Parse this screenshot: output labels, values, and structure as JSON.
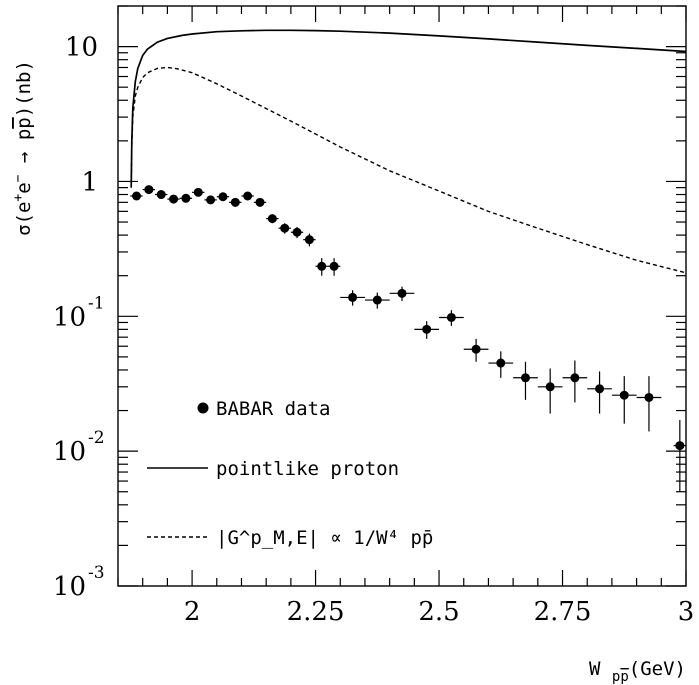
{
  "chart_data": {
    "type": "scatter",
    "title": "",
    "xlabel": "W pp̄ (GeV)",
    "ylabel": "σ(e⁺e⁻ → pp̄) (nb)",
    "xlim": [
      1.85,
      3.0
    ],
    "ylim": [
      0.001,
      20
    ],
    "yscale": "log",
    "grid": false,
    "legend_position": "bottom-left",
    "x_ticks": [
      {
        "value": 2.0,
        "label": "2"
      },
      {
        "value": 2.25,
        "label": "2.25"
      },
      {
        "value": 2.5,
        "label": "2.5"
      },
      {
        "value": 2.75,
        "label": "2.75"
      },
      {
        "value": 3.0,
        "label": "3"
      }
    ],
    "y_ticks": [
      {
        "value": 10,
        "base": "10",
        "exp": ""
      },
      {
        "value": 1,
        "base": "1",
        "exp": ""
      },
      {
        "value": 0.1,
        "base": "10",
        "exp": "-1"
      },
      {
        "value": 0.01,
        "base": "10",
        "exp": "-2"
      },
      {
        "value": 0.001,
        "base": "10",
        "exp": "-3"
      }
    ],
    "series": [
      {
        "name": "BABAR data",
        "style": "points",
        "points": [
          {
            "x": 1.8875,
            "y": 0.78,
            "xerr": 0.0125,
            "yerr": 0.05
          },
          {
            "x": 1.9125,
            "y": 0.87,
            "xerr": 0.0125,
            "yerr": 0.05
          },
          {
            "x": 1.9375,
            "y": 0.8,
            "xerr": 0.0125,
            "yerr": 0.05
          },
          {
            "x": 1.9625,
            "y": 0.74,
            "xerr": 0.0125,
            "yerr": 0.05
          },
          {
            "x": 1.9875,
            "y": 0.75,
            "xerr": 0.0125,
            "yerr": 0.05
          },
          {
            "x": 2.0125,
            "y": 0.83,
            "xerr": 0.0125,
            "yerr": 0.05
          },
          {
            "x": 2.0375,
            "y": 0.73,
            "xerr": 0.0125,
            "yerr": 0.05
          },
          {
            "x": 2.0625,
            "y": 0.77,
            "xerr": 0.0125,
            "yerr": 0.05
          },
          {
            "x": 2.0875,
            "y": 0.7,
            "xerr": 0.0125,
            "yerr": 0.05
          },
          {
            "x": 2.1125,
            "y": 0.78,
            "xerr": 0.0125,
            "yerr": 0.05
          },
          {
            "x": 2.1375,
            "y": 0.7,
            "xerr": 0.0125,
            "yerr": 0.05
          },
          {
            "x": 2.1625,
            "y": 0.53,
            "xerr": 0.0125,
            "yerr": 0.04
          },
          {
            "x": 2.1875,
            "y": 0.45,
            "xerr": 0.0125,
            "yerr": 0.04
          },
          {
            "x": 2.2125,
            "y": 0.42,
            "xerr": 0.0125,
            "yerr": 0.04
          },
          {
            "x": 2.2375,
            "y": 0.37,
            "xerr": 0.0125,
            "yerr": 0.04
          },
          {
            "x": 2.2625,
            "y": 0.235,
            "xerr": 0.0125,
            "yerr": 0.035
          },
          {
            "x": 2.2875,
            "y": 0.235,
            "xerr": 0.0125,
            "yerr": 0.035
          },
          {
            "x": 2.325,
            "y": 0.138,
            "xerr": 0.025,
            "yerr": 0.018
          },
          {
            "x": 2.375,
            "y": 0.132,
            "xerr": 0.025,
            "yerr": 0.018
          },
          {
            "x": 2.425,
            "y": 0.148,
            "xerr": 0.025,
            "yerr": 0.018
          },
          {
            "x": 2.475,
            "y": 0.08,
            "xerr": 0.025,
            "yerr": 0.012
          },
          {
            "x": 2.525,
            "y": 0.098,
            "xerr": 0.025,
            "yerr": 0.013
          },
          {
            "x": 2.575,
            "y": 0.057,
            "xerr": 0.025,
            "yerr": 0.011
          },
          {
            "x": 2.625,
            "y": 0.045,
            "xerr": 0.025,
            "yerr": 0.01
          },
          {
            "x": 2.675,
            "y": 0.035,
            "xerr": 0.025,
            "yerr": 0.011
          },
          {
            "x": 2.725,
            "y": 0.03,
            "xerr": 0.025,
            "yerr": 0.011
          },
          {
            "x": 2.775,
            "y": 0.035,
            "xerr": 0.025,
            "yerr": 0.012
          },
          {
            "x": 2.825,
            "y": 0.029,
            "xerr": 0.025,
            "yerr": 0.01
          },
          {
            "x": 2.875,
            "y": 0.026,
            "xerr": 0.025,
            "yerr": 0.01
          },
          {
            "x": 2.925,
            "y": 0.025,
            "xerr": 0.025,
            "yerr": 0.011
          },
          {
            "x": 2.9875,
            "y": 0.011,
            "xerr": 0.0125,
            "yerr": 0.006
          }
        ]
      },
      {
        "name": "pointlike proton",
        "style": "solid",
        "x": [
          1.8767,
          1.878,
          1.88,
          1.885,
          1.89,
          1.9,
          1.91,
          1.93,
          1.95,
          1.98,
          2.0,
          2.05,
          2.1,
          2.15,
          2.2,
          2.25,
          2.3,
          2.4,
          2.5,
          2.6,
          2.7,
          2.8,
          2.9,
          3.0
        ],
        "y": [
          0.9,
          2.0,
          3.5,
          5.5,
          6.9,
          8.6,
          9.6,
          10.8,
          11.5,
          12.1,
          12.4,
          12.9,
          13.1,
          13.2,
          13.2,
          13.15,
          13.0,
          12.6,
          12.0,
          11.4,
          10.8,
          10.2,
          9.7,
          9.2
        ]
      },
      {
        "name": "|G^p_M,E| ∝ 1/W⁴ pp̄",
        "style": "dashed",
        "x": [
          1.8767,
          1.878,
          1.88,
          1.885,
          1.89,
          1.9,
          1.91,
          1.93,
          1.95,
          1.97,
          2.0,
          2.05,
          2.1,
          2.2,
          2.3,
          2.4,
          2.5,
          2.6,
          2.7,
          2.8,
          2.9,
          3.0
        ],
        "y": [
          0.9,
          1.8,
          3.0,
          4.3,
          5.0,
          5.9,
          6.4,
          6.9,
          7.0,
          6.85,
          6.4,
          5.3,
          4.3,
          2.8,
          1.8,
          1.2,
          0.85,
          0.6,
          0.45,
          0.34,
          0.26,
          0.21
        ]
      }
    ]
  },
  "legend": {
    "data_label": "BABAR data",
    "solid_label": "pointlike proton",
    "dashed_label": "|G^p_M,E| ∝ 1/W⁴ pp̄"
  }
}
